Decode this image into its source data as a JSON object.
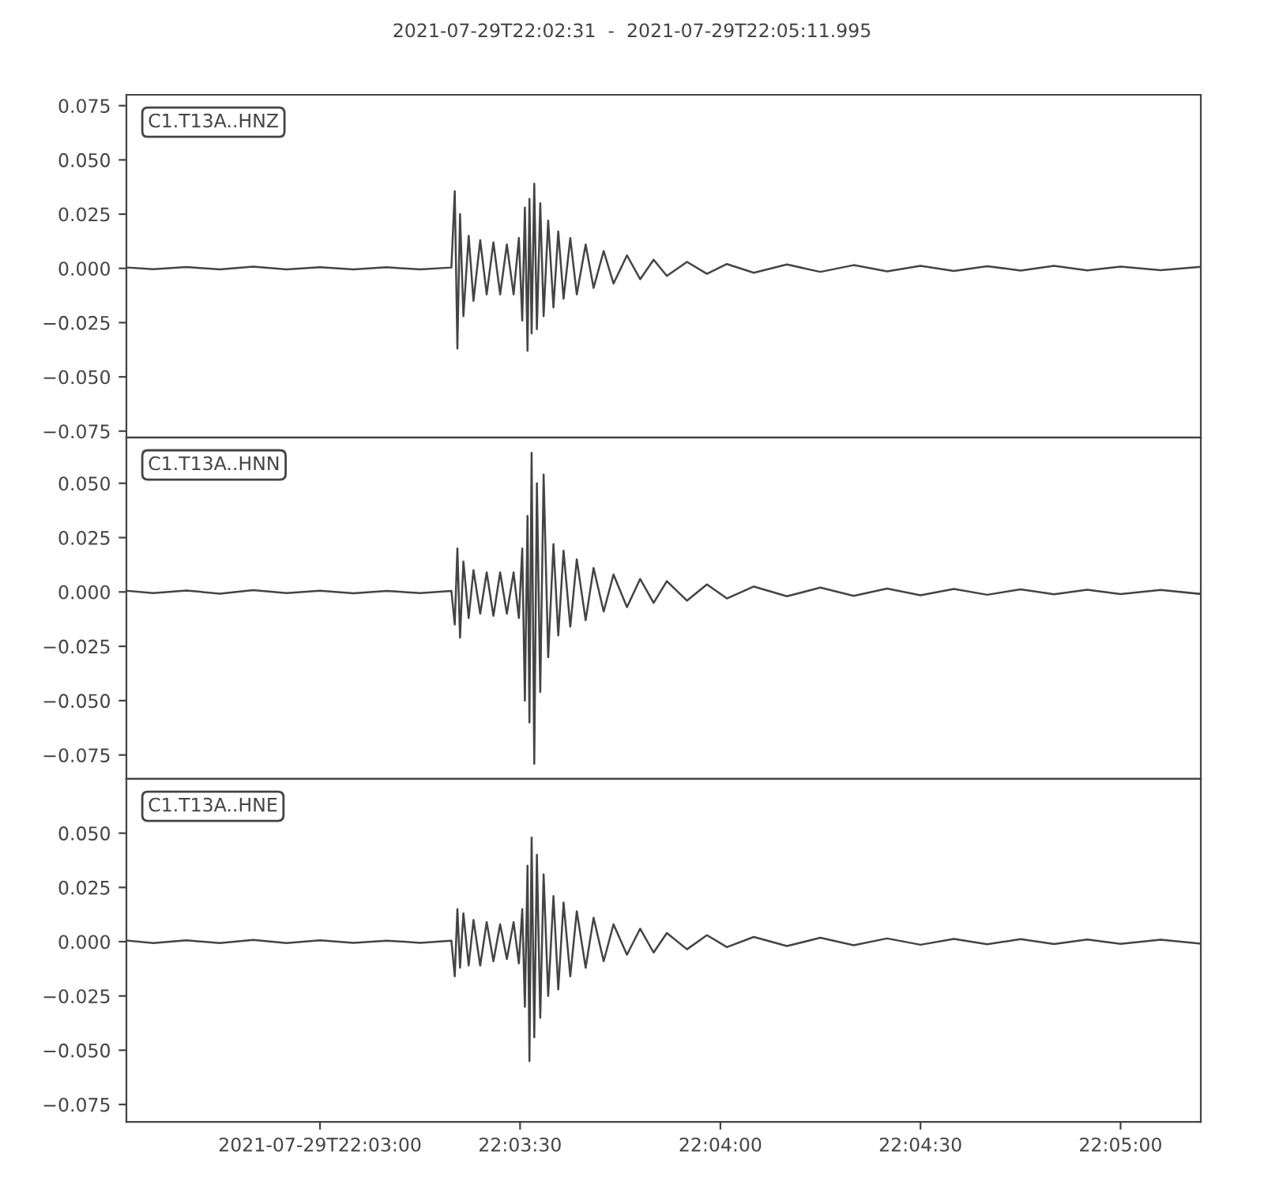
{
  "chart_data": [
    {
      "type": "line",
      "title": "2021-07-29T22:02:31  -  2021-07-29T22:05:11.995",
      "annotations": [
        "C1.T13A..HNZ"
      ],
      "x": [
        22.042,
        22.04306,
        22.04444,
        22.04583,
        22.04722,
        22.04861,
        22.05,
        22.05139,
        22.05278,
        22.05417,
        22.05547,
        22.05561,
        22.05572,
        22.05583,
        22.05597,
        22.05619,
        22.05639,
        22.05667,
        22.05694,
        22.05722,
        22.0575,
        22.05778,
        22.05806,
        22.05828,
        22.05842,
        22.05853,
        22.05864,
        22.05872,
        22.05881,
        22.05892,
        22.05903,
        22.05917,
        22.05931,
        22.0595,
        22.05972,
        22.05992,
        22.06014,
        22.06042,
        22.06069,
        22.06106,
        22.06139,
        22.06181,
        22.06222,
        22.06278,
        22.06333,
        22.06389,
        22.06444,
        22.06528,
        22.06611,
        22.06694,
        22.06806,
        22.06944,
        22.07083,
        22.07222,
        22.07361,
        22.075,
        22.07639,
        22.07778,
        22.07917,
        22.08056,
        22.08194,
        22.08333,
        22.085,
        22.08664
      ],
      "series": [
        {
          "color": "#444444",
          "values": [
            0.0004,
            -0.0004,
            0.0006,
            -0.0005,
            0.0008,
            -0.0005,
            0.0005,
            -0.0005,
            0.0005,
            -0.0005,
            0.0004,
            0.0356,
            -0.037,
            0.025,
            -0.022,
            0.015,
            -0.015,
            0.013,
            -0.012,
            0.012,
            -0.012,
            0.011,
            -0.012,
            0.014,
            -0.024,
            0.028,
            -0.038,
            0.032,
            -0.03,
            0.039,
            -0.028,
            0.03,
            -0.022,
            0.022,
            -0.018,
            0.017,
            -0.014,
            0.014,
            -0.012,
            0.011,
            -0.009,
            0.008,
            -0.007,
            0.006,
            -0.005,
            0.004,
            -0.0035,
            0.003,
            -0.0025,
            0.002,
            -0.002,
            0.0018,
            -0.0016,
            0.0015,
            -0.0014,
            0.0012,
            -0.0012,
            0.001,
            -0.001,
            0.0012,
            -0.0009,
            0.0008,
            -0.0008,
            0.0007
          ]
        }
      ],
      "xlim": [
        22.04194,
        22.08667
      ],
      "ylim": [
        -0.078,
        0.08
      ],
      "yticks": [
        {
          "value": -0.075,
          "label": "−0.075"
        },
        {
          "value": -0.05,
          "label": "−0.050"
        },
        {
          "value": -0.025,
          "label": "−0.025"
        },
        {
          "value": 0,
          "label": "0.000"
        },
        {
          "value": 0.025,
          "label": "0.025"
        },
        {
          "value": 0.05,
          "label": "0.050"
        },
        {
          "value": 0.075,
          "label": "0.075"
        }
      ],
      "tick_labels": "y",
      "grid": false
    },
    {
      "type": "line",
      "annotations": [
        "C1.T13A..HNN"
      ],
      "x": [
        22.042,
        22.04306,
        22.04444,
        22.04583,
        22.04722,
        22.04861,
        22.05,
        22.05139,
        22.05278,
        22.05417,
        22.05547,
        22.05561,
        22.05572,
        22.05583,
        22.05597,
        22.05619,
        22.05639,
        22.05667,
        22.05694,
        22.05722,
        22.0575,
        22.05778,
        22.05806,
        22.05828,
        22.05842,
        22.05853,
        22.05864,
        22.05872,
        22.05881,
        22.05892,
        22.05903,
        22.05917,
        22.05931,
        22.0595,
        22.05972,
        22.05992,
        22.06014,
        22.06042,
        22.06069,
        22.06106,
        22.06139,
        22.06181,
        22.06222,
        22.06278,
        22.06333,
        22.06389,
        22.06444,
        22.06528,
        22.06611,
        22.06694,
        22.06806,
        22.06944,
        22.07083,
        22.07222,
        22.07361,
        22.075,
        22.07639,
        22.07778,
        22.07917,
        22.08056,
        22.08194,
        22.08333,
        22.085,
        22.08664
      ],
      "series": [
        {
          "color": "#444444",
          "values": [
            0.0005,
            -0.0005,
            0.0007,
            -0.0008,
            0.0008,
            -0.0005,
            0.0006,
            -0.0006,
            0.0005,
            -0.0005,
            0.0005,
            -0.015,
            0.02,
            -0.021,
            0.014,
            -0.012,
            0.01,
            -0.01,
            0.009,
            -0.011,
            0.009,
            -0.01,
            0.009,
            -0.012,
            0.02,
            -0.05,
            0.035,
            -0.06,
            0.064,
            -0.079,
            0.05,
            -0.046,
            0.054,
            -0.03,
            0.022,
            -0.02,
            0.019,
            -0.016,
            0.015,
            -0.013,
            0.011,
            -0.009,
            0.008,
            -0.007,
            0.006,
            -0.005,
            0.005,
            -0.004,
            0.0035,
            -0.003,
            0.0025,
            -0.002,
            0.002,
            -0.0018,
            0.0016,
            -0.0015,
            0.0014,
            -0.0013,
            0.0012,
            -0.0011,
            0.001,
            -0.001,
            0.0009,
            -0.0009
          ]
        }
      ],
      "xlim": [
        22.04194,
        22.08667
      ],
      "ylim": [
        -0.086,
        0.071
      ],
      "yticks": [
        {
          "value": -0.075,
          "label": "−0.075"
        },
        {
          "value": -0.05,
          "label": "−0.050"
        },
        {
          "value": -0.025,
          "label": "−0.025"
        },
        {
          "value": 0,
          "label": "0.000"
        },
        {
          "value": 0.025,
          "label": "0.025"
        },
        {
          "value": 0.05,
          "label": "0.050"
        }
      ],
      "tick_labels": "y",
      "grid": false
    },
    {
      "type": "line",
      "annotations": [
        "C1.T13A..HNE"
      ],
      "x": [
        22.042,
        22.04306,
        22.04444,
        22.04583,
        22.04722,
        22.04861,
        22.05,
        22.05139,
        22.05278,
        22.05417,
        22.05547,
        22.05561,
        22.05572,
        22.05583,
        22.05597,
        22.05619,
        22.05639,
        22.05667,
        22.05694,
        22.05722,
        22.0575,
        22.05778,
        22.05806,
        22.05828,
        22.05842,
        22.05853,
        22.05864,
        22.05872,
        22.05881,
        22.05892,
        22.05903,
        22.05917,
        22.05931,
        22.0595,
        22.05972,
        22.05992,
        22.06014,
        22.06042,
        22.06069,
        22.06106,
        22.06139,
        22.06181,
        22.06222,
        22.06278,
        22.06333,
        22.06389,
        22.06444,
        22.06528,
        22.06611,
        22.06694,
        22.06806,
        22.06944,
        22.07083,
        22.07222,
        22.07361,
        22.075,
        22.07639,
        22.07778,
        22.07917,
        22.08056,
        22.08194,
        22.08333,
        22.085,
        22.08664
      ],
      "series": [
        {
          "color": "#444444",
          "values": [
            0.0005,
            -0.0006,
            0.0006,
            -0.0006,
            0.0008,
            -0.0006,
            0.0006,
            -0.0005,
            0.0005,
            -0.0005,
            0.0005,
            -0.016,
            0.015,
            -0.012,
            0.013,
            -0.011,
            0.01,
            -0.011,
            0.009,
            -0.009,
            0.008,
            -0.008,
            0.009,
            -0.01,
            0.015,
            -0.03,
            0.035,
            -0.055,
            0.048,
            -0.044,
            0.04,
            -0.035,
            0.031,
            -0.025,
            0.021,
            -0.022,
            0.018,
            -0.016,
            0.014,
            -0.012,
            0.011,
            -0.009,
            0.008,
            -0.006,
            0.006,
            -0.005,
            0.004,
            -0.0035,
            0.003,
            -0.0025,
            0.0022,
            -0.002,
            0.0018,
            -0.0016,
            0.0015,
            -0.0014,
            0.0013,
            -0.0012,
            0.0012,
            -0.0011,
            0.001,
            -0.001,
            0.0009,
            -0.0009
          ]
        }
      ],
      "xlim": [
        22.04194,
        22.08667
      ],
      "ylim": [
        -0.083,
        0.075
      ],
      "yticks": [
        {
          "value": -0.075,
          "label": "−0.075"
        },
        {
          "value": -0.05,
          "label": "−0.050"
        },
        {
          "value": -0.025,
          "label": "−0.025"
        },
        {
          "value": 0,
          "label": "0.000"
        },
        {
          "value": 0.025,
          "label": "0.025"
        },
        {
          "value": 0.05,
          "label": "0.050"
        }
      ],
      "xticks": [
        {
          "value": 22.05,
          "label": "2021-07-29T22:03:00"
        },
        {
          "value": 22.05833,
          "label": "22:03:30"
        },
        {
          "value": 22.06667,
          "label": "22:04:00"
        },
        {
          "value": 22.075,
          "label": "22:04:30"
        },
        {
          "value": 22.08333,
          "label": "22:05:00"
        }
      ],
      "grid": false
    }
  ]
}
